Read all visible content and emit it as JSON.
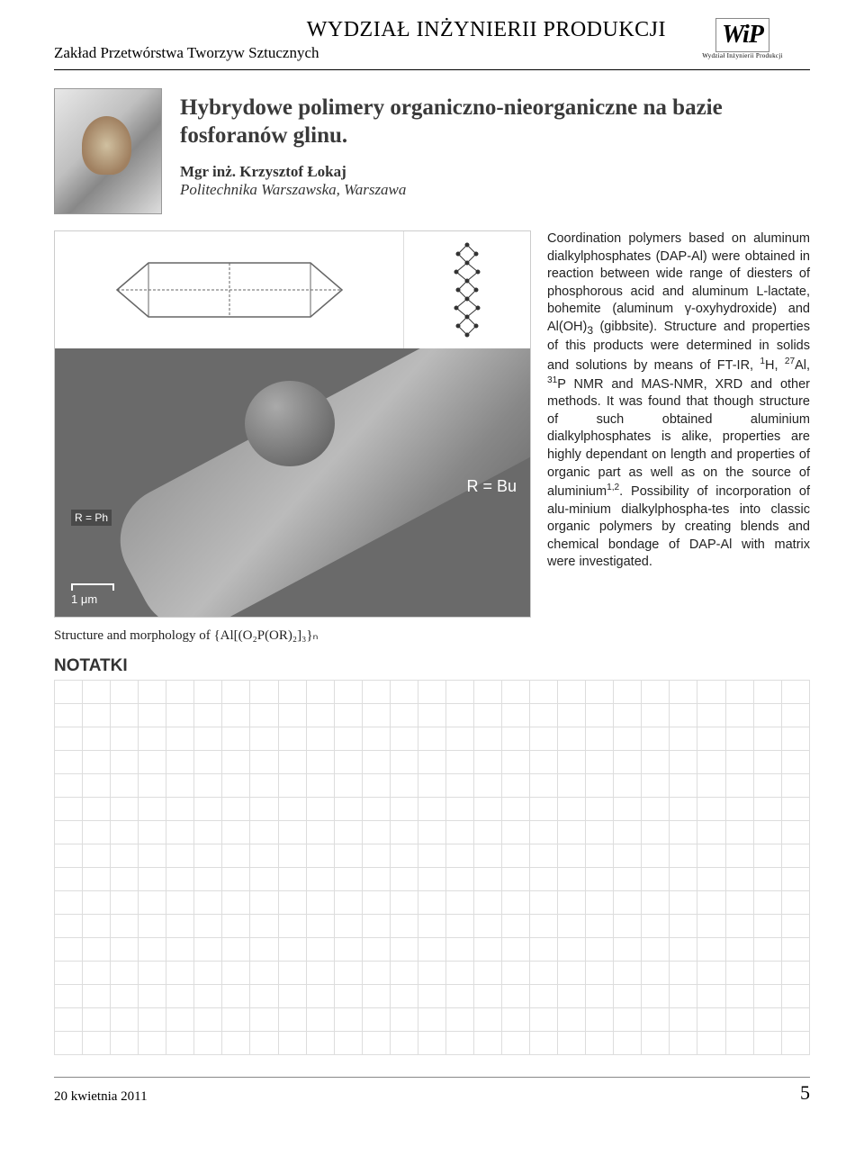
{
  "header": {
    "department": "WYDZIAŁ INŻYNIERII PRODUKCJI",
    "subunit": "Zakład Przetwórstwa Tworzyw Sztucznych",
    "logo_main": "WiP",
    "logo_sub": "Wydział Inżynierii Produkcji"
  },
  "article": {
    "title": "Hybrydowe polimery organiczno-nieorganiczne na bazie fosforanów glinu.",
    "author_prefix": "Mgr inż. ",
    "author_name": "Krzysztof Łokaj",
    "affiliation": "Politechnika Warszawska, Warszawa"
  },
  "figure": {
    "sem_label_right": "R = Bu",
    "sem_label_left": "R = Ph",
    "sem_scale": "1 μm",
    "caption_prefix": "Structure and morphology of ",
    "caption_formula": "{Al[(O₂P(OR)₂]₃}ₙ"
  },
  "abstract": {
    "text_1": "Coordination polymers based on aluminum dialkylphosphates (DAP-Al) were obtained in reaction between wide range of diesters of phosphorous acid and aluminum L-lactate, bohemite (aluminum γ-oxyhydroxide) and Al(OH)",
    "sub_3": "3",
    "text_2": " (gibbsite). Structure and properties of this products were determined in solids and solutions by means of FT-IR, ",
    "sup_1h": "1",
    "text_h": "H, ",
    "sup_27": "27",
    "text_al": "Al, ",
    "sup_31": "31",
    "text_3": "P NMR and MAS-NMR, XRD and other methods. It was found that though structure of such obtained aluminium dialkylphosphates is alike, properties are highly dependant on length and properties of organic part as well as on the source of aluminium",
    "sup_12": "1,2",
    "text_4": ". Possibility of incorporation of alu-minium dialkylphospha-tes into classic organic polymers by creating blends and chemical bondage of DAP-Al with matrix were investigated."
  },
  "notes": {
    "header": "NOTATKI",
    "rows": 16,
    "cols": 27
  },
  "footer": {
    "date": "20 kwietnia 2011",
    "page": "5"
  }
}
